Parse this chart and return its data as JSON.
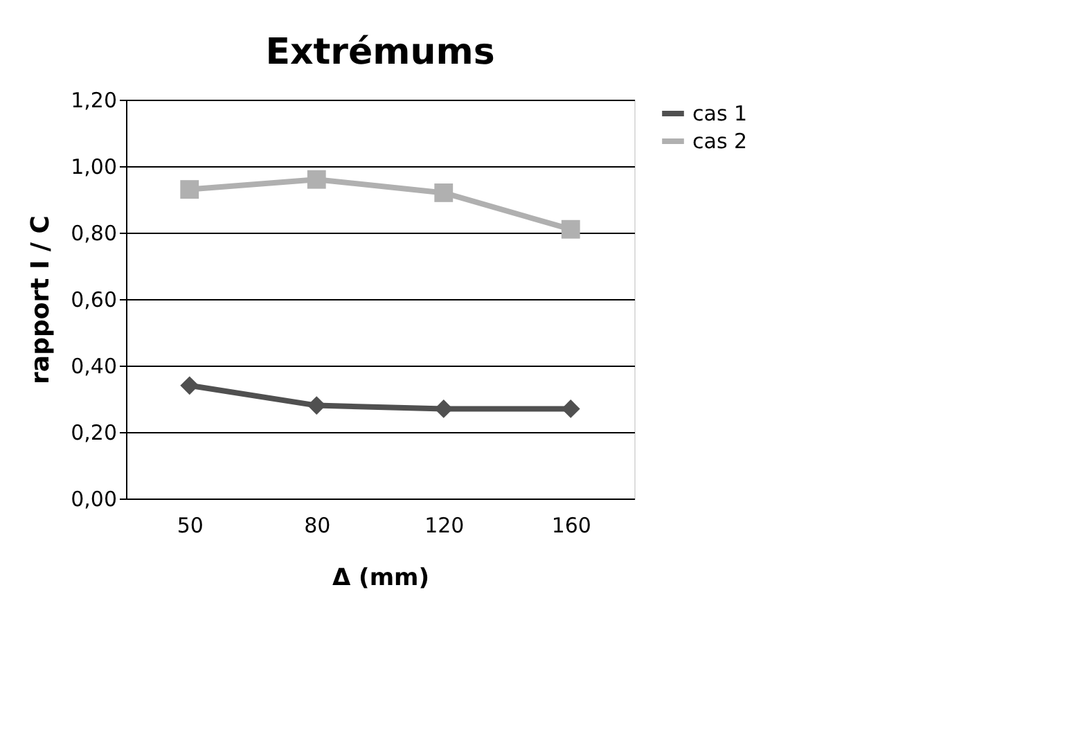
{
  "chart_data": {
    "type": "line",
    "title": "Extrémums",
    "xlabel": "Δ (mm)",
    "ylabel": "rapport I / C",
    "categories": [
      "50",
      "80",
      "120",
      "160"
    ],
    "series": [
      {
        "name": "cas 1",
        "color": "#505050",
        "marker": "diamond",
        "values": [
          0.34,
          0.28,
          0.27,
          0.27
        ]
      },
      {
        "name": "cas 2",
        "color": "#b0b0b0",
        "marker": "square",
        "values": [
          0.93,
          0.96,
          0.92,
          0.81
        ]
      }
    ],
    "ylim": [
      0,
      1.2
    ],
    "yticks": [
      {
        "value": 0,
        "label": "0,00"
      },
      {
        "value": 0.2,
        "label": "0,20"
      },
      {
        "value": 0.4,
        "label": "0,40"
      },
      {
        "value": 0.6,
        "label": "0,60"
      },
      {
        "value": 0.8,
        "label": "0,80"
      },
      {
        "value": 1.0,
        "label": "1,00"
      },
      {
        "value": 1.2,
        "label": "1,20"
      }
    ],
    "grid": "y",
    "legend": "right",
    "line_style": "solid"
  }
}
